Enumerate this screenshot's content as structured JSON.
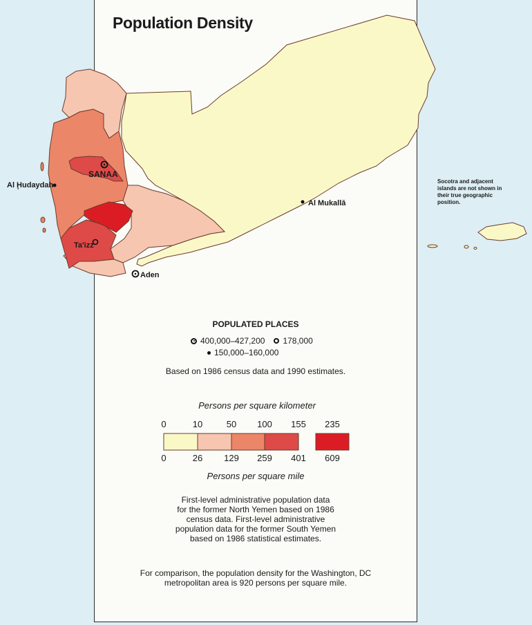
{
  "map": {
    "title": "Population Density",
    "colors": {
      "water": "#ddeef4",
      "panel": "#fbfbf7",
      "class_0_10": "#fbf8c8",
      "class_10_50": "#f6c6b1",
      "class_50_100": "#ec8668",
      "class_100_155": "#de4a48",
      "class_235": "#dc1c24",
      "border": "#6a3b2c"
    },
    "places": {
      "capital": "SANAA",
      "cities": [
        "Al Ḩudaydah",
        "Ta'izz",
        "Aden",
        "Al Mukallā"
      ]
    },
    "socotra_note": "Socotra and adjacent islands are not shown in their true geographic position."
  },
  "legend": {
    "populated_places_title": "POPULATED PLACES",
    "place_classes": [
      "400,000–427,200",
      "178,000",
      "150,000–160,000"
    ],
    "source": "Based on 1986 census data and 1990 estimates.",
    "km_label": "Persons per square kilometer",
    "km_ticks": [
      "0",
      "10",
      "50",
      "100",
      "155",
      "235"
    ],
    "mi_ticks": [
      "0",
      "26",
      "129",
      "259",
      "401",
      "609"
    ],
    "mi_label": "Persons per square mile",
    "admin_note": [
      "First-level administrative population data",
      "for the former North Yemen based on 1986",
      "census data. First-level administrative",
      "population data for the former South Yemen",
      "based on 1986 statistical estimates."
    ],
    "comparison_note": [
      "For comparison, the population density for the Washington, DC",
      "metropolitan area is 920 persons per square mile."
    ]
  }
}
